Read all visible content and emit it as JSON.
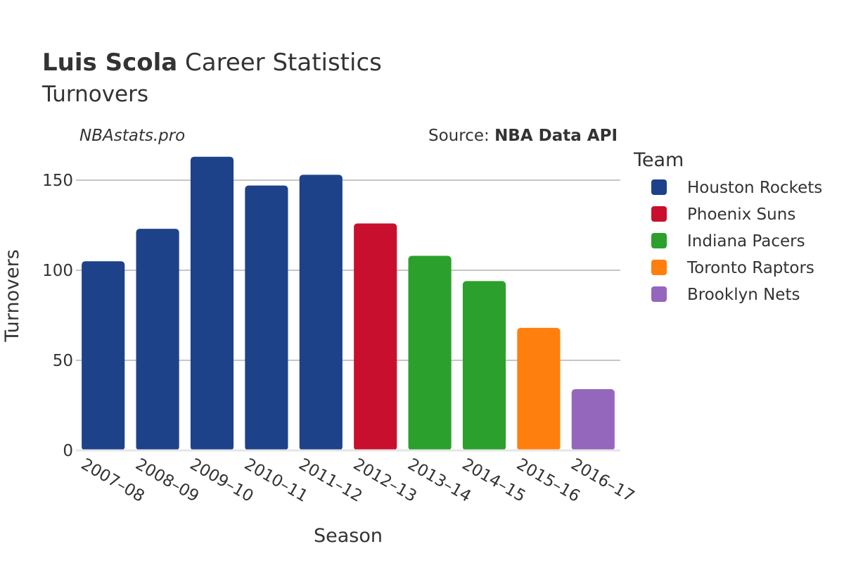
{
  "title": {
    "bold": "Luis Scola",
    "rest": " Career Statistics",
    "subtitle": "Turnovers"
  },
  "watermark": "NBAstats.pro",
  "source": {
    "prefix": "Source: ",
    "name": "NBA Data API"
  },
  "legend": {
    "title": "Team",
    "items": [
      {
        "label": "Houston Rockets",
        "color": "#1d428a"
      },
      {
        "label": "Phoenix Suns",
        "color": "#c8102e"
      },
      {
        "label": "Indiana Pacers",
        "color": "#2ca02c"
      },
      {
        "label": "Toronto Raptors",
        "color": "#ff7f0e"
      },
      {
        "label": "Brooklyn Nets",
        "color": "#9467bd"
      }
    ]
  },
  "chart_data": {
    "type": "bar",
    "title": "Luis Scola Career Statistics",
    "subtitle": "Turnovers",
    "xlabel": "Season",
    "ylabel": "Turnovers",
    "ylim": [
      0,
      170
    ],
    "yticks": [
      0,
      50,
      100,
      150
    ],
    "grid": true,
    "legend_position": "right",
    "categories": [
      "2007–08",
      "2008–09",
      "2009–10",
      "2010–11",
      "2011–12",
      "2012–13",
      "2013–14",
      "2014–15",
      "2015–16",
      "2016–17"
    ],
    "values": [
      105,
      123,
      163,
      147,
      153,
      126,
      108,
      94,
      68,
      34
    ],
    "teams": [
      "Houston Rockets",
      "Houston Rockets",
      "Houston Rockets",
      "Houston Rockets",
      "Houston Rockets",
      "Phoenix Suns",
      "Indiana Pacers",
      "Indiana Pacers",
      "Toronto Raptors",
      "Brooklyn Nets"
    ]
  }
}
